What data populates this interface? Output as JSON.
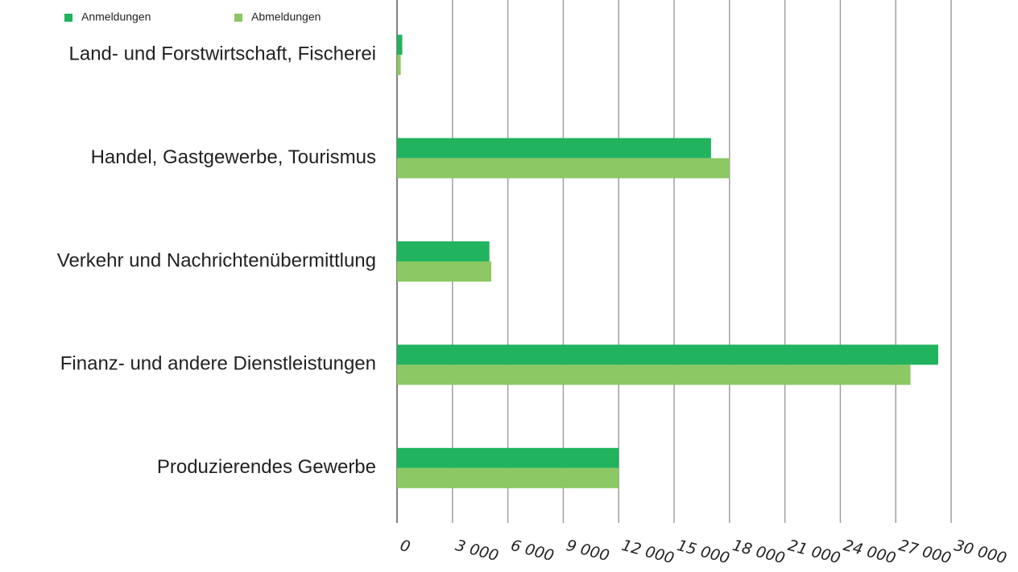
{
  "chart_data": {
    "type": "hbar",
    "categories": [
      "Land- und Forstwirtschaft, Fischerei",
      "Handel, Gastgewerbe, Tourismus",
      "Verkehr und Nachrichtenübermittlung",
      "Finanz- und andere Dienstleistungen",
      "Produzierendes Gewerbe"
    ],
    "series": [
      {
        "name": "Anmeldungen",
        "color": "#21b35e",
        "values": [
          280,
          17000,
          5000,
          29300,
          12000
        ]
      },
      {
        "name": "Abmeldungen",
        "color": "#8cc864",
        "values": [
          200,
          18000,
          5100,
          27800,
          12000
        ]
      }
    ],
    "xlim": [
      0,
      30000
    ],
    "xticks": [
      0,
      {
        "value": 3000,
        "label": "3 000"
      },
      {
        "value": 6000,
        "label": "6 000"
      },
      {
        "value": 9000,
        "label": "9 000"
      },
      {
        "value": 12000,
        "label": "12 000"
      },
      {
        "value": 15000,
        "label": "15 000"
      },
      {
        "value": 18000,
        "label": "18 000"
      },
      {
        "value": 21000,
        "label": "21 000"
      },
      {
        "value": 24000,
        "label": "24 000"
      },
      {
        "value": 27000,
        "label": "27 000"
      },
      {
        "value": 30000,
        "label": "30 000"
      }
    ],
    "grid": true,
    "legend": "top-left"
  }
}
